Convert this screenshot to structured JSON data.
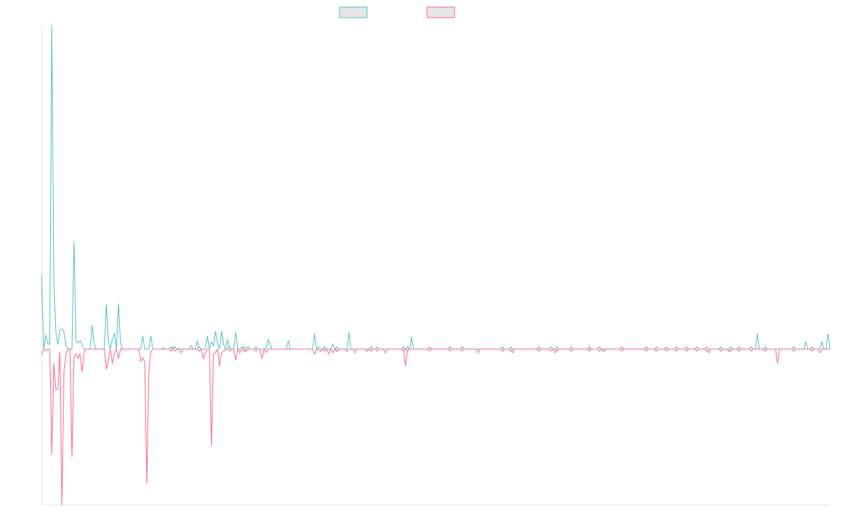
{
  "chart_data": {
    "type": "line",
    "title": "",
    "xlabel": "",
    "ylabel": "",
    "grid": false,
    "legend": "top-center",
    "ylim": [
      -13000,
      27000
    ],
    "xlim": [
      0,
      390
    ],
    "series": [
      {
        "color": "#4bc0c0",
        "spikes": [
          [
            0,
            6200
          ],
          [
            2,
            1200
          ],
          [
            3,
            500
          ],
          [
            4,
            400
          ],
          [
            5,
            27000
          ],
          [
            6,
            6000
          ],
          [
            7,
            1500
          ],
          [
            8,
            400
          ],
          [
            9,
            1600
          ],
          [
            10,
            1700
          ],
          [
            11,
            1500
          ],
          [
            12,
            300
          ],
          [
            16,
            9000
          ],
          [
            17,
            700
          ],
          [
            18,
            500
          ],
          [
            19,
            700
          ],
          [
            20,
            400
          ],
          [
            25,
            2000
          ],
          [
            26,
            400
          ],
          [
            32,
            3700
          ],
          [
            33,
            600
          ],
          [
            35,
            800
          ],
          [
            36,
            1300
          ],
          [
            38,
            3800
          ],
          [
            39,
            600
          ],
          [
            50,
            1100
          ],
          [
            54,
            1100
          ],
          [
            60,
            100
          ],
          [
            65,
            200
          ],
          [
            68,
            50
          ],
          [
            74,
            300
          ],
          [
            77,
            700
          ],
          [
            82,
            1100
          ],
          [
            84,
            600
          ],
          [
            85,
            300
          ],
          [
            86,
            1500
          ],
          [
            87,
            500
          ],
          [
            89,
            1500
          ],
          [
            90,
            400
          ],
          [
            92,
            800
          ],
          [
            96,
            1400
          ],
          [
            99,
            200
          ],
          [
            102,
            200
          ],
          [
            112,
            800
          ],
          [
            113,
            400
          ],
          [
            122,
            700
          ],
          [
            135,
            1300
          ],
          [
            137,
            200
          ],
          [
            140,
            200
          ],
          [
            144,
            400
          ],
          [
            152,
            1400
          ],
          [
            183,
            1000
          ],
          [
            354,
            1300
          ],
          [
            378,
            600
          ],
          [
            386,
            600
          ],
          [
            389,
            1300
          ]
        ]
      },
      {
        "color": "#ff6384",
        "spikes": [
          [
            0,
            -500
          ],
          [
            2,
            -100
          ],
          [
            3,
            -50
          ],
          [
            5,
            -8800
          ],
          [
            6,
            -1200
          ],
          [
            7,
            -3400
          ],
          [
            8,
            -3300
          ],
          [
            9,
            -200
          ],
          [
            10,
            -13000
          ],
          [
            11,
            -2000
          ],
          [
            12,
            -400
          ],
          [
            15,
            -9000
          ],
          [
            16,
            -700
          ],
          [
            17,
            -400
          ],
          [
            18,
            -800
          ],
          [
            19,
            -400
          ],
          [
            20,
            -1900
          ],
          [
            21,
            -300
          ],
          [
            32,
            -1700
          ],
          [
            33,
            -900
          ],
          [
            35,
            -1200
          ],
          [
            36,
            -300
          ],
          [
            38,
            -800
          ],
          [
            49,
            -1000
          ],
          [
            50,
            -700
          ],
          [
            51,
            -1100
          ],
          [
            52,
            -11200
          ],
          [
            53,
            -2000
          ],
          [
            54,
            -200
          ],
          [
            69,
            -300
          ],
          [
            80,
            -800
          ],
          [
            81,
            -300
          ],
          [
            84,
            -8100
          ],
          [
            85,
            -400
          ],
          [
            86,
            -300
          ],
          [
            88,
            -1400
          ],
          [
            89,
            -300
          ],
          [
            90,
            -200
          ],
          [
            96,
            -900
          ],
          [
            98,
            -300
          ],
          [
            101,
            -200
          ],
          [
            109,
            -800
          ],
          [
            111,
            -300
          ],
          [
            135,
            -400
          ],
          [
            138,
            -200
          ],
          [
            142,
            -400
          ],
          [
            144,
            -300
          ],
          [
            146,
            -200
          ],
          [
            151,
            -200
          ],
          [
            155,
            -300
          ],
          [
            161,
            -200
          ],
          [
            170,
            -300
          ],
          [
            180,
            -1400
          ],
          [
            216,
            -300
          ],
          [
            233,
            -300
          ],
          [
            254,
            -300
          ],
          [
            278,
            -200
          ],
          [
            330,
            -300
          ],
          [
            340,
            -200
          ],
          [
            364,
            -1200
          ],
          [
            385,
            -300
          ]
        ]
      }
    ],
    "markers_zero": [
      64,
      66,
      78,
      93,
      100,
      106,
      140,
      146,
      163,
      166,
      179,
      181,
      192,
      202,
      208,
      228,
      232,
      246,
      252,
      255,
      262,
      271,
      276,
      287,
      299,
      304,
      309,
      314,
      319,
      324,
      329,
      336,
      341,
      345,
      351,
      358,
      372,
      381
    ]
  }
}
